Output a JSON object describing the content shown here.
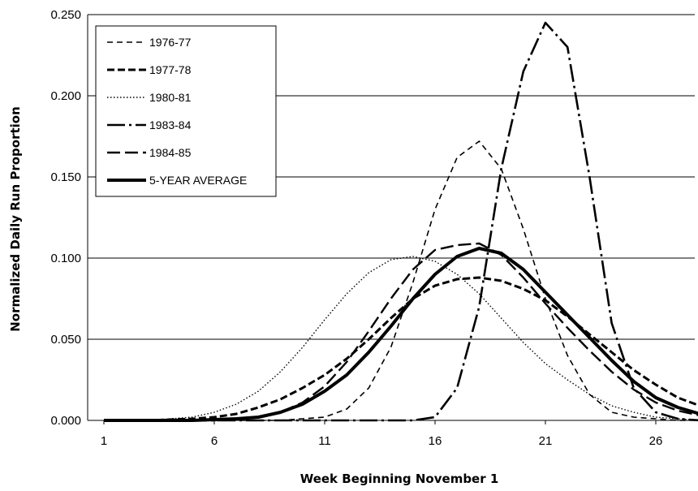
{
  "chart_data": {
    "type": "line",
    "title": "",
    "xlabel": "Week Beginning November 1",
    "ylabel": "Normalized  Daily  Run  Proportion",
    "xlim": [
      1,
      28.5
    ],
    "ylim": [
      0,
      0.25
    ],
    "x_ticks": [
      1,
      6,
      11,
      16,
      21,
      26
    ],
    "y_ticks": [
      "0.000",
      "0.050",
      "0.100",
      "0.150",
      "0.200",
      "0.250"
    ],
    "grid": "horizontal",
    "legend_position": "top-left",
    "x": [
      1,
      2,
      3,
      4,
      5,
      6,
      7,
      8,
      9,
      10,
      11,
      12,
      13,
      14,
      15,
      16,
      17,
      18,
      19,
      20,
      21,
      22,
      23,
      24,
      25,
      26,
      27,
      28
    ],
    "series": [
      {
        "name": "1976-77",
        "dash": "7,5",
        "width": 1.6,
        "values": [
          0,
          0,
          0,
          0,
          0,
          0,
          0,
          0,
          0,
          0.001,
          0.002,
          0.007,
          0.02,
          0.045,
          0.085,
          0.13,
          0.162,
          0.172,
          0.155,
          0.118,
          0.075,
          0.04,
          0.016,
          0.005,
          0.002,
          0.001,
          0,
          0
        ]
      },
      {
        "name": "1977-78",
        "dash": "9,4",
        "width": 3,
        "values": [
          0,
          0,
          0,
          0.0005,
          0.001,
          0.002,
          0.004,
          0.008,
          0.013,
          0.02,
          0.028,
          0.038,
          0.05,
          0.063,
          0.075,
          0.083,
          0.087,
          0.088,
          0.086,
          0.081,
          0.074,
          0.064,
          0.053,
          0.042,
          0.031,
          0.022,
          0.014,
          0.009
        ]
      },
      {
        "name": "1980-81",
        "dash": "1.5,2.5",
        "width": 1.4,
        "values": [
          0,
          0,
          0,
          0.001,
          0.002,
          0.005,
          0.01,
          0.018,
          0.03,
          0.045,
          0.062,
          0.078,
          0.091,
          0.099,
          0.101,
          0.098,
          0.09,
          0.078,
          0.063,
          0.048,
          0.035,
          0.025,
          0.016,
          0.009,
          0.005,
          0.002,
          0.001,
          0
        ]
      },
      {
        "name": "1983-84",
        "dash": "22,5,3,5",
        "width": 2.6,
        "values": [
          0,
          0,
          0,
          0,
          0,
          0,
          0,
          0,
          0,
          0,
          0,
          0,
          0,
          0,
          0,
          0.002,
          0.02,
          0.07,
          0.155,
          0.215,
          0.245,
          0.23,
          0.15,
          0.06,
          0.02,
          0.005,
          0.001,
          0
        ]
      },
      {
        "name": "1984-85",
        "dash": "16,6",
        "width": 2.4,
        "values": [
          0,
          0,
          0,
          0,
          0,
          0,
          0.001,
          0.002,
          0.005,
          0.011,
          0.021,
          0.036,
          0.055,
          0.075,
          0.093,
          0.105,
          0.108,
          0.109,
          0.102,
          0.088,
          0.072,
          0.057,
          0.043,
          0.03,
          0.019,
          0.011,
          0.006,
          0.003
        ]
      },
      {
        "name": "5-YEAR  AVERAGE",
        "dash": "",
        "width": 4,
        "values": [
          0,
          0,
          0,
          0,
          0,
          0.0005,
          0.001,
          0.002,
          0.005,
          0.01,
          0.018,
          0.028,
          0.042,
          0.058,
          0.075,
          0.09,
          0.101,
          0.106,
          0.103,
          0.093,
          0.079,
          0.065,
          0.051,
          0.037,
          0.024,
          0.014,
          0.008,
          0.004
        ]
      }
    ]
  }
}
